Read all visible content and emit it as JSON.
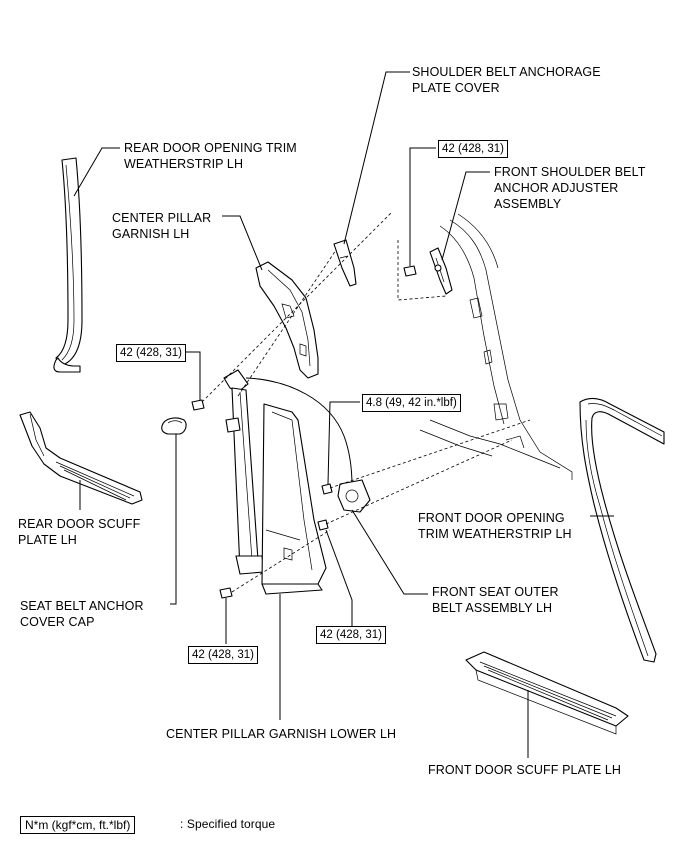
{
  "labels": {
    "shoulder_belt_cover_1": "SHOULDER BELT ANCHORAGE",
    "shoulder_belt_cover_2": "PLATE COVER",
    "rear_door_trim_1": "REAR DOOR OPENING TRIM",
    "rear_door_trim_2": "WEATHERSTRIP LH",
    "front_adjuster_1": "FRONT SHOULDER BELT",
    "front_adjuster_2": "ANCHOR ADJUSTER",
    "front_adjuster_3": "ASSEMBLY",
    "center_pillar_1": "CENTER PILLAR",
    "center_pillar_2": "GARNISH LH",
    "rear_scuff_1": "REAR DOOR SCUFF",
    "rear_scuff_2": "PLATE LH",
    "front_door_trim_1": "FRONT DOOR OPENING",
    "front_door_trim_2": "TRIM WEATHERSTRIP LH",
    "front_seat_belt_1": "FRONT SEAT OUTER",
    "front_seat_belt_2": "BELT ASSEMBLY LH",
    "seat_belt_cap_1": "SEAT BELT ANCHOR",
    "seat_belt_cap_2": "COVER CAP",
    "center_pillar_lower": "CENTER PILLAR GARNISH LOWER LH",
    "front_scuff": "FRONT DOOR SCUFF PLATE LH"
  },
  "torques": {
    "adjuster_bolt": "42 (428, 31)",
    "pillar_upper_bolt": "42 (428, 31)",
    "belt_guide_bolt": "4.8 (49, 42 in.*lbf)",
    "belt_lower_bolt": "42 (428, 31)",
    "lower_anchor_bolt": "42 (428, 31)"
  },
  "legend": {
    "unit": "N*m (kgf*cm, ft.*lbf)",
    "description": ": Specified torque"
  }
}
